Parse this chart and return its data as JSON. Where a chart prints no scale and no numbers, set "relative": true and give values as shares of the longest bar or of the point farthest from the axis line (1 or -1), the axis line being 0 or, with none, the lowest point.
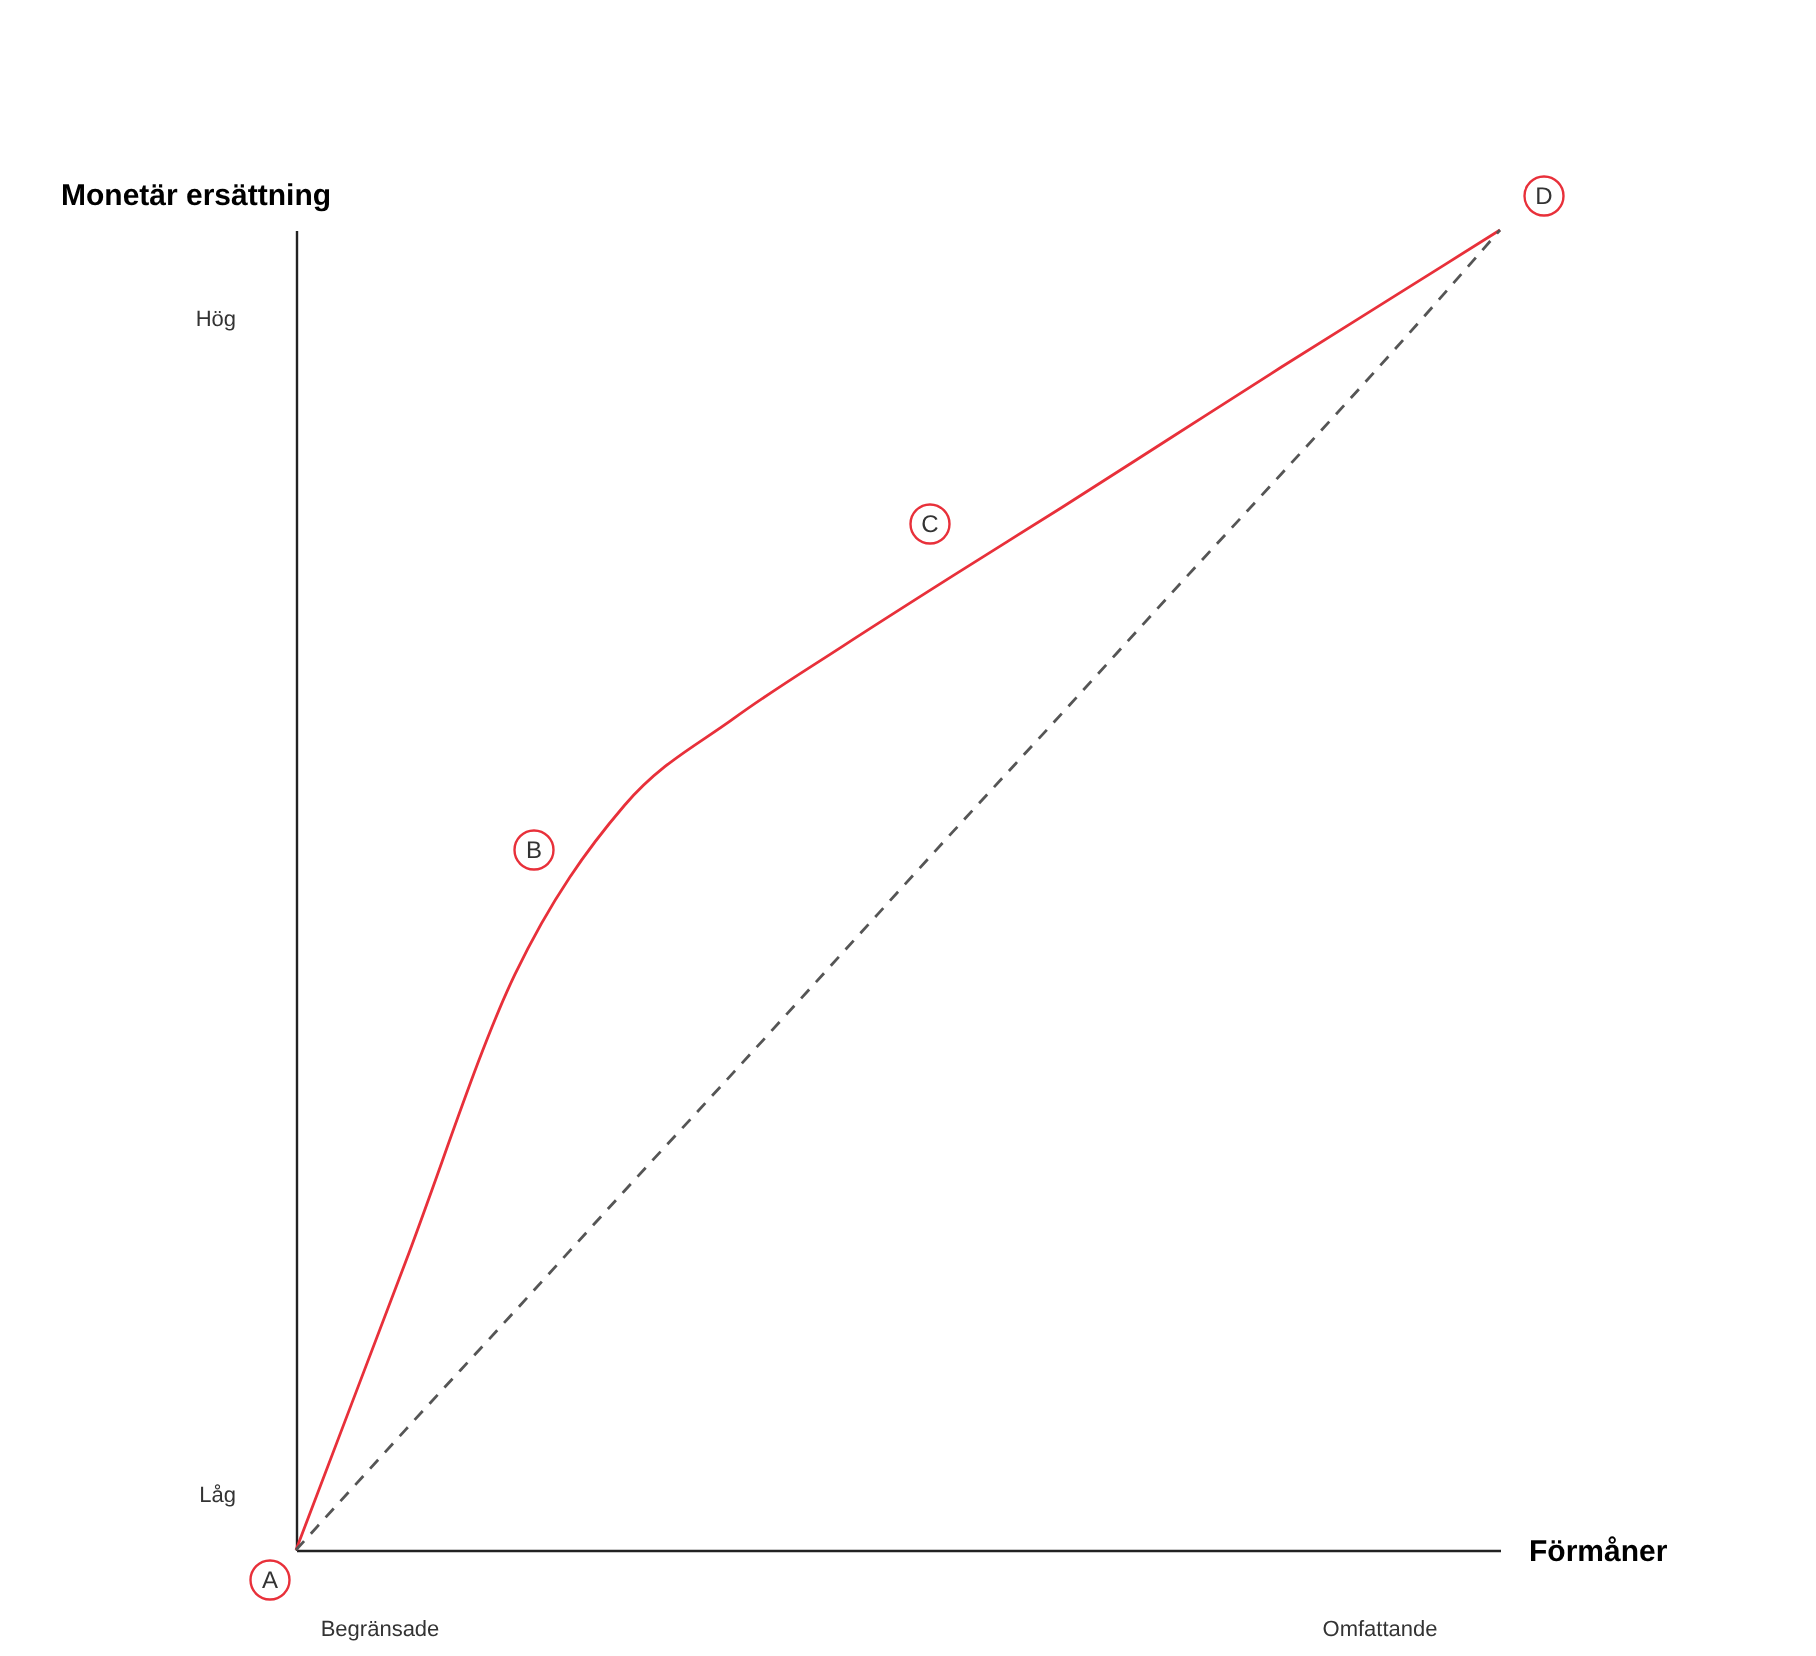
{
  "chart_data": {
    "type": "line",
    "xlabel": "Förmåner",
    "ylabel": "Monetär ersättning",
    "relative": true,
    "categories": [
      null,
      null,
      null,
      null,
      null,
      null,
      null,
      null,
      null,
      null,
      null,
      null
    ],
    "series": [
      {
        "color": "#e8303a",
        "line_style": "solid",
        "values": [
          0,
          0.218,
          0.436,
          0.564,
          0.63,
          0.685,
          0.738,
          0.79,
          0.843,
          0.896,
          0.948,
          1.0
        ]
      },
      {
        "color": "#555555",
        "line_style": "dashed",
        "values": [
          0,
          0.091,
          0.181,
          0.272,
          0.362,
          0.453,
          0.544,
          0.634,
          0.725,
          0.815,
          0.906,
          1.0
        ]
      }
    ],
    "annotations": [
      "Låg",
      "Hög",
      "Begränsade",
      "Omfattande",
      "A",
      "B",
      "C",
      "D"
    ]
  }
}
